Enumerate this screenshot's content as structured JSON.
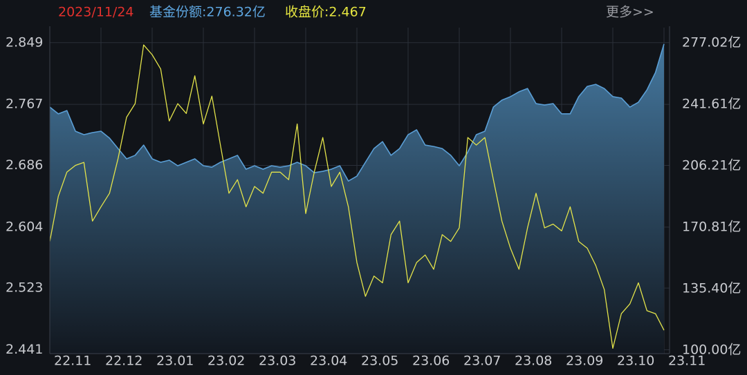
{
  "header": {
    "date": "2023/11/24",
    "share": "基金份额:276.32亿",
    "close": "收盘价:2.467",
    "more": "更多>>"
  },
  "chart_data": {
    "type": "line",
    "categories": [
      "22.11",
      null,
      null,
      null,
      null,
      null,
      "22.12",
      null,
      null,
      null,
      null,
      null,
      "23.01",
      null,
      null,
      null,
      null,
      null,
      "23.02",
      null,
      null,
      null,
      null,
      null,
      "23.03",
      null,
      null,
      null,
      null,
      null,
      "23.04",
      null,
      null,
      null,
      null,
      null,
      "23.05",
      null,
      null,
      null,
      null,
      null,
      "23.06",
      null,
      null,
      null,
      null,
      null,
      "23.07",
      null,
      null,
      null,
      null,
      null,
      "23.08",
      null,
      null,
      null,
      null,
      null,
      "23.09",
      null,
      null,
      null,
      null,
      null,
      "23.10",
      null,
      null,
      null,
      null,
      null,
      "23.11"
    ],
    "series": [
      {
        "color": "#5b9fd6",
        "axis": "y2",
        "area": true,
        "values": [
          240.0,
          236.1,
          238.0,
          226.1,
          224.1,
          225.3,
          226.1,
          222.1,
          216.1,
          210.2,
          212.2,
          218.1,
          210.2,
          208.2,
          209.4,
          206.2,
          208.2,
          210.2,
          206.2,
          205.4,
          208.2,
          210.2,
          212.2,
          204.2,
          206.2,
          204.2,
          206.2,
          205.4,
          206.2,
          208.2,
          206.2,
          202.2,
          203.0,
          204.2,
          206.2,
          197.4,
          200.2,
          208.2,
          216.1,
          220.1,
          212.2,
          216.1,
          224.1,
          226.9,
          218.1,
          217.3,
          216.1,
          212.2,
          206.2,
          214.1,
          224.1,
          226.1,
          240.0,
          244.0,
          246.0,
          248.8,
          250.7,
          242.0,
          241.2,
          242.0,
          236.1,
          236.1,
          246.0,
          251.9,
          253.1,
          250.7,
          246.0,
          245.2,
          240.0,
          242.8,
          249.9,
          259.9,
          276.32
        ]
      },
      {
        "color": "#e4e44a",
        "values": [
          2.585,
          2.645,
          2.677,
          2.686,
          2.69,
          2.612,
          2.631,
          2.649,
          2.695,
          2.75,
          2.768,
          2.846,
          2.833,
          2.814,
          2.745,
          2.768,
          2.755,
          2.805,
          2.741,
          2.778,
          2.713,
          2.649,
          2.667,
          2.631,
          2.658,
          2.649,
          2.677,
          2.677,
          2.667,
          2.741,
          2.622,
          2.677,
          2.723,
          2.658,
          2.677,
          2.631,
          2.557,
          2.512,
          2.539,
          2.53,
          2.594,
          2.612,
          2.53,
          2.557,
          2.567,
          2.548,
          2.594,
          2.585,
          2.603,
          2.723,
          2.713,
          2.723,
          2.667,
          2.612,
          2.576,
          2.548,
          2.603,
          2.649,
          2.603,
          2.608,
          2.599,
          2.631,
          2.585,
          2.576,
          2.553,
          2.521,
          2.443,
          2.489,
          2.502,
          2.53,
          2.493,
          2.489,
          2.467
        ]
      }
    ],
    "ylim": [
      2.436,
      2.869
    ],
    "yticks": [
      2.441,
      2.523,
      2.604,
      2.686,
      2.767,
      2.849
    ],
    "y2lim": [
      98.0,
      285.77
    ],
    "y2ticks": [
      {
        "value": 100.0,
        "label": "100.00亿"
      },
      {
        "value": 135.4,
        "label": "135.40亿"
      },
      {
        "value": 170.81,
        "label": "170.81亿"
      },
      {
        "value": 206.21,
        "label": "206.21亿"
      },
      {
        "value": 241.61,
        "label": "241.61亿"
      },
      {
        "value": 277.02,
        "label": "277.02亿"
      }
    ],
    "grid": true
  }
}
